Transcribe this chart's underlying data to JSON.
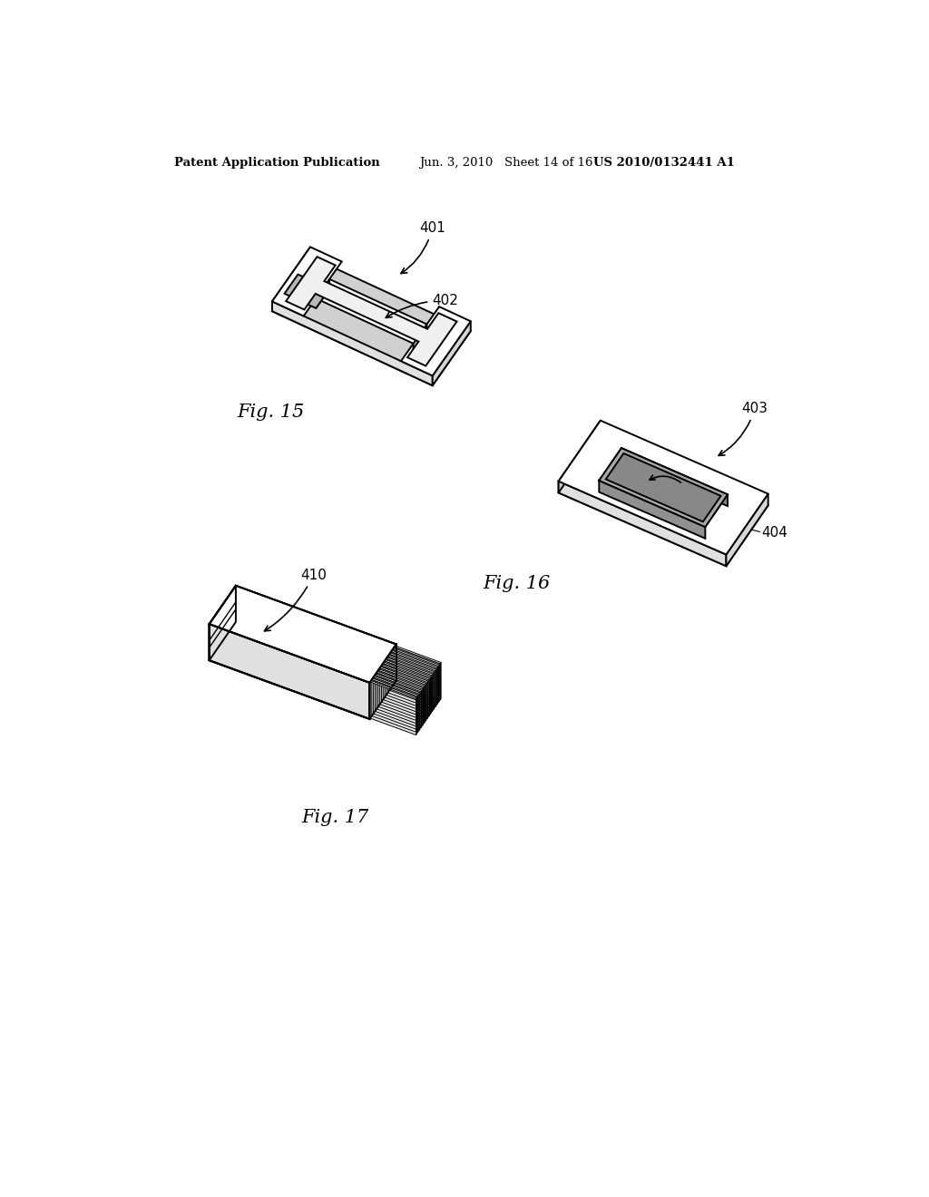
{
  "background_color": "#ffffff",
  "header_left": "Patent Application Publication",
  "header_mid": "Jun. 3, 2010   Sheet 14 of 16",
  "header_right": "US 2010/0132441 A1",
  "fig15_label": "Fig. 15",
  "fig16_label": "Fig. 16",
  "fig17_label": "Fig. 17",
  "label_401": "401",
  "label_402": "402",
  "label_403": "403",
  "label_404": "404",
  "label_410": "410",
  "lc": "#000000",
  "lw": 1.4,
  "face_top": "#ffffff",
  "face_side": "#d8d8d8",
  "face_front": "#e8e8e8",
  "face_inner": "#c8c8c8"
}
